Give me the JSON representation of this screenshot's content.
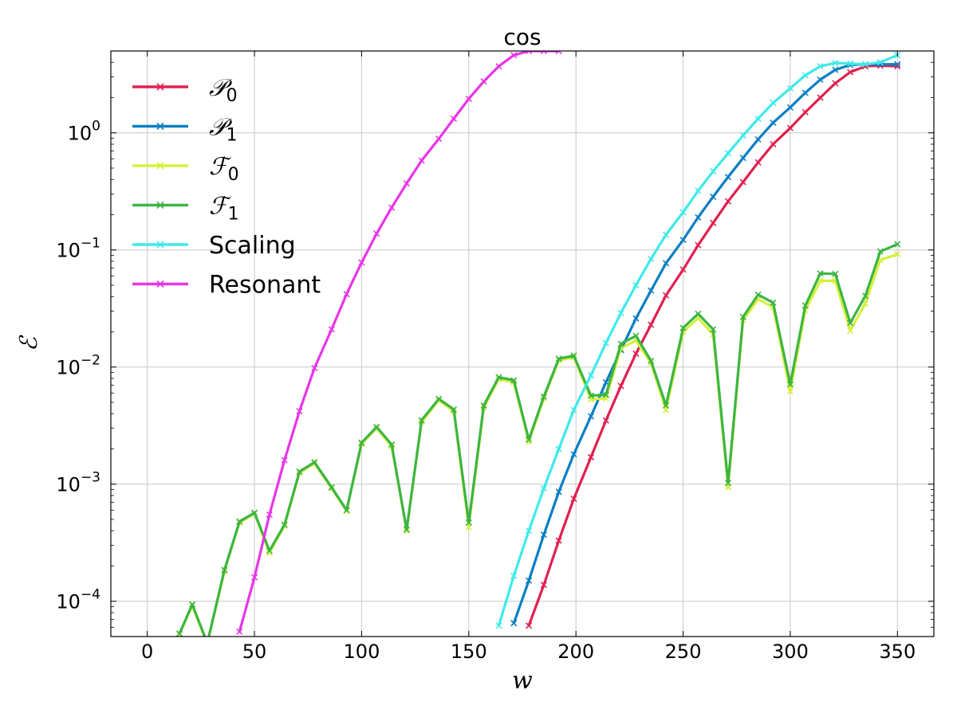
{
  "chart_data": {
    "type": "line",
    "title": "cos",
    "xlabel": "w",
    "ylabel": "ℰ",
    "yscale": "log",
    "xlim": [
      -17,
      367
    ],
    "ylim": [
      5e-05,
      5
    ],
    "xticks": [
      0,
      50,
      100,
      150,
      200,
      250,
      300,
      350
    ],
    "xtick_labels": [
      "0",
      "50",
      "100",
      "150",
      "200",
      "250",
      "300",
      "350"
    ],
    "yticks": [
      0.0001,
      0.001,
      0.01,
      0.1,
      1
    ],
    "ytick_labels": [
      {
        "base": "10",
        "exp": "−4"
      },
      {
        "base": "10",
        "exp": "−3"
      },
      {
        "base": "10",
        "exp": "−2"
      },
      {
        "base": "10",
        "exp": "−1"
      },
      {
        "base": "10",
        "exp": "0"
      }
    ],
    "grid": true,
    "legend_position": "upper-left",
    "series": [
      {
        "name": "𝒫0",
        "legend_main": "𝒫",
        "legend_sub": "0",
        "color": "#e0204f",
        "x": [
          178,
          185,
          192,
          199,
          207,
          214,
          221,
          228,
          235,
          242,
          250,
          257,
          264,
          271,
          278,
          285,
          292,
          300,
          307,
          314,
          321,
          328,
          335,
          342,
          350
        ],
        "y": [
          6.2e-05,
          0.000138,
          0.00033,
          0.00075,
          0.0017,
          0.0035,
          0.0069,
          0.013,
          0.023,
          0.041,
          0.068,
          0.11,
          0.17,
          0.26,
          0.38,
          0.56,
          0.8,
          1.1,
          1.5,
          2.0,
          2.65,
          3.3,
          3.7,
          3.75,
          3.7
        ]
      },
      {
        "name": "𝒫1",
        "legend_main": "𝒫",
        "legend_sub": "1",
        "color": "#0b7fc3",
        "x": [
          171,
          178,
          185,
          192,
          199,
          207,
          214,
          221,
          228,
          235,
          242,
          250,
          257,
          264,
          271,
          278,
          285,
          292,
          300,
          307,
          314,
          321,
          328,
          335,
          342,
          350
        ],
        "y": [
          6.5e-05,
          0.00015,
          0.00037,
          0.00086,
          0.0018,
          0.0038,
          0.0074,
          0.014,
          0.026,
          0.045,
          0.077,
          0.122,
          0.19,
          0.285,
          0.42,
          0.61,
          0.88,
          1.22,
          1.65,
          2.2,
          2.85,
          3.45,
          3.8,
          3.85,
          3.85,
          3.85
        ]
      },
      {
        "name": "ℱ0",
        "legend_main": "ℱ",
        "legend_sub": "0",
        "color": "#d6f03c",
        "x": [
          15,
          21,
          28,
          36,
          43,
          50,
          57,
          64,
          71,
          78,
          86,
          93,
          100,
          107,
          114,
          121,
          128,
          136,
          143,
          150,
          157,
          164,
          171,
          178,
          185,
          192,
          199,
          207,
          214,
          221,
          228,
          235,
          242,
          250,
          257,
          264,
          271,
          278,
          285,
          292,
          300,
          307,
          314,
          321,
          328,
          335,
          342,
          350
        ],
        "y": [
          5.2e-05,
          9.2e-05,
          4.3e-05,
          0.00018,
          0.00047,
          0.00056,
          0.00026,
          0.00044,
          0.00125,
          0.0015,
          0.00092,
          0.00059,
          0.0022,
          0.003,
          0.0021,
          0.0004,
          0.0034,
          0.0052,
          0.0042,
          0.00043,
          0.0045,
          0.0079,
          0.0074,
          0.0023,
          0.0054,
          0.0114,
          0.0121,
          0.0053,
          0.0054,
          0.0145,
          0.0168,
          0.0108,
          0.0043,
          0.02,
          0.0262,
          0.019,
          0.00094,
          0.0252,
          0.038,
          0.0325,
          0.0062,
          0.0305,
          0.0545,
          0.0545,
          0.0205,
          0.0348,
          0.082,
          0.092
        ]
      },
      {
        "name": "ℱ1",
        "legend_main": "ℱ",
        "legend_sub": "1",
        "color": "#3cb545",
        "x": [
          15,
          21,
          28,
          36,
          43,
          50,
          57,
          64,
          71,
          78,
          86,
          93,
          100,
          107,
          114,
          121,
          128,
          136,
          143,
          150,
          157,
          164,
          171,
          178,
          185,
          192,
          199,
          207,
          214,
          221,
          228,
          235,
          242,
          250,
          257,
          264,
          271,
          278,
          285,
          292,
          300,
          307,
          314,
          321,
          328,
          335,
          342,
          350
        ],
        "y": [
          5.3e-05,
          9.4e-05,
          4.4e-05,
          0.000185,
          0.00048,
          0.00057,
          0.00027,
          0.00045,
          0.00128,
          0.00154,
          0.00094,
          0.0006,
          0.00226,
          0.00308,
          0.00218,
          0.00041,
          0.00352,
          0.00535,
          0.00435,
          0.00047,
          0.0047,
          0.0082,
          0.0077,
          0.0024,
          0.0056,
          0.0118,
          0.0125,
          0.0057,
          0.0058,
          0.0158,
          0.0185,
          0.0113,
          0.0047,
          0.0216,
          0.0285,
          0.021,
          0.00102,
          0.0268,
          0.0415,
          0.0355,
          0.0071,
          0.0335,
          0.063,
          0.0625,
          0.0238,
          0.0405,
          0.097,
          0.112
        ]
      },
      {
        "name": "Scaling",
        "legend_main": "Scaling",
        "legend_sub": "",
        "color": "#3feaea",
        "x": [
          164,
          171,
          178,
          185,
          192,
          199,
          207,
          214,
          221,
          228,
          235,
          242,
          250,
          257,
          264,
          271,
          278,
          285,
          292,
          300,
          307,
          314,
          321,
          328,
          335,
          342,
          350
        ],
        "y": [
          6.2e-05,
          0.000165,
          0.0004,
          0.00092,
          0.002,
          0.0043,
          0.0085,
          0.016,
          0.029,
          0.05,
          0.084,
          0.135,
          0.21,
          0.32,
          0.47,
          0.67,
          0.95,
          1.32,
          1.8,
          2.4,
          3.1,
          3.7,
          3.95,
          3.9,
          3.85,
          4.0,
          4.6
        ]
      },
      {
        "name": "Resonant",
        "legend_main": "Resonant",
        "legend_sub": "",
        "color": "#e835e8",
        "x": [
          43,
          50,
          57,
          64,
          71,
          78,
          86,
          93,
          100,
          107,
          114,
          121,
          128,
          136,
          143,
          150,
          157,
          164,
          171,
          178,
          185,
          192
        ],
        "y": [
          5.5e-05,
          0.00016,
          0.00055,
          0.0016,
          0.0042,
          0.0098,
          0.021,
          0.042,
          0.078,
          0.138,
          0.23,
          0.37,
          0.58,
          0.89,
          1.32,
          1.95,
          2.75,
          3.7,
          4.6,
          5.0,
          5.0,
          5.0
        ]
      }
    ]
  }
}
